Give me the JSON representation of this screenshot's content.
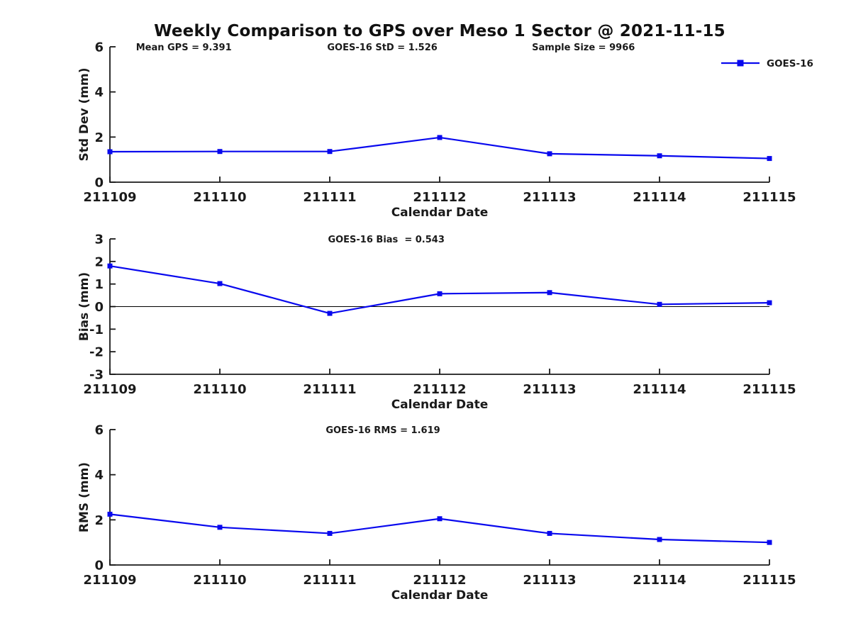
{
  "title": "Weekly Comparison to GPS over Meso 1 Sector @ 2021-11-15",
  "colors": {
    "series": "#0808ee",
    "axis": "#1a1a1a",
    "text": "#1a1a1a",
    "zero_line": "#000000",
    "background": "#ffffff"
  },
  "legend": {
    "label": "GOES-16",
    "position": "top-right-first-subplot"
  },
  "chart_data": [
    {
      "type": "line",
      "ylabel": "Std Dev (mm)",
      "xlabel": "Calendar Date",
      "categories": [
        "211109",
        "211110",
        "211111",
        "211112",
        "211113",
        "211114",
        "211115"
      ],
      "series": [
        {
          "name": "GOES-16",
          "marker": "square",
          "values": [
            1.35,
            1.36,
            1.36,
            1.98,
            1.26,
            1.17,
            1.05
          ]
        }
      ],
      "ylim": [
        0,
        6
      ],
      "yticks": [
        0,
        2,
        4,
        6
      ],
      "grid": false,
      "zero_line": false,
      "show_legend": true,
      "annotations": [
        "Mean GPS = 9.391",
        "GOES-16 StD = 1.526",
        "Sample Size = 9966"
      ]
    },
    {
      "type": "line",
      "ylabel": "Bias (mm)",
      "xlabel": "Calendar Date",
      "categories": [
        "211109",
        "211110",
        "211111",
        "211112",
        "211113",
        "211114",
        "211115"
      ],
      "series": [
        {
          "name": "GOES-16",
          "marker": "square",
          "values": [
            1.8,
            1.02,
            -0.3,
            0.57,
            0.62,
            0.1,
            0.17
          ]
        }
      ],
      "ylim": [
        -3,
        3
      ],
      "yticks": [
        -3,
        -2,
        -1,
        0,
        1,
        2,
        3
      ],
      "grid": false,
      "zero_line": true,
      "show_legend": false,
      "annotations": [
        "GOES-16 Bias  = 0.543"
      ]
    },
    {
      "type": "line",
      "ylabel": "RMS (mm)",
      "xlabel": "Calendar Date",
      "categories": [
        "211109",
        "211110",
        "211111",
        "211112",
        "211113",
        "211114",
        "211115"
      ],
      "series": [
        {
          "name": "GOES-16",
          "marker": "square",
          "values": [
            2.25,
            1.67,
            1.4,
            2.05,
            1.4,
            1.13,
            1.0
          ]
        }
      ],
      "ylim": [
        0,
        6
      ],
      "yticks": [
        0,
        2,
        4,
        6
      ],
      "grid": false,
      "zero_line": false,
      "show_legend": false,
      "annotations": [
        "GOES-16 RMS = 1.619"
      ]
    }
  ]
}
